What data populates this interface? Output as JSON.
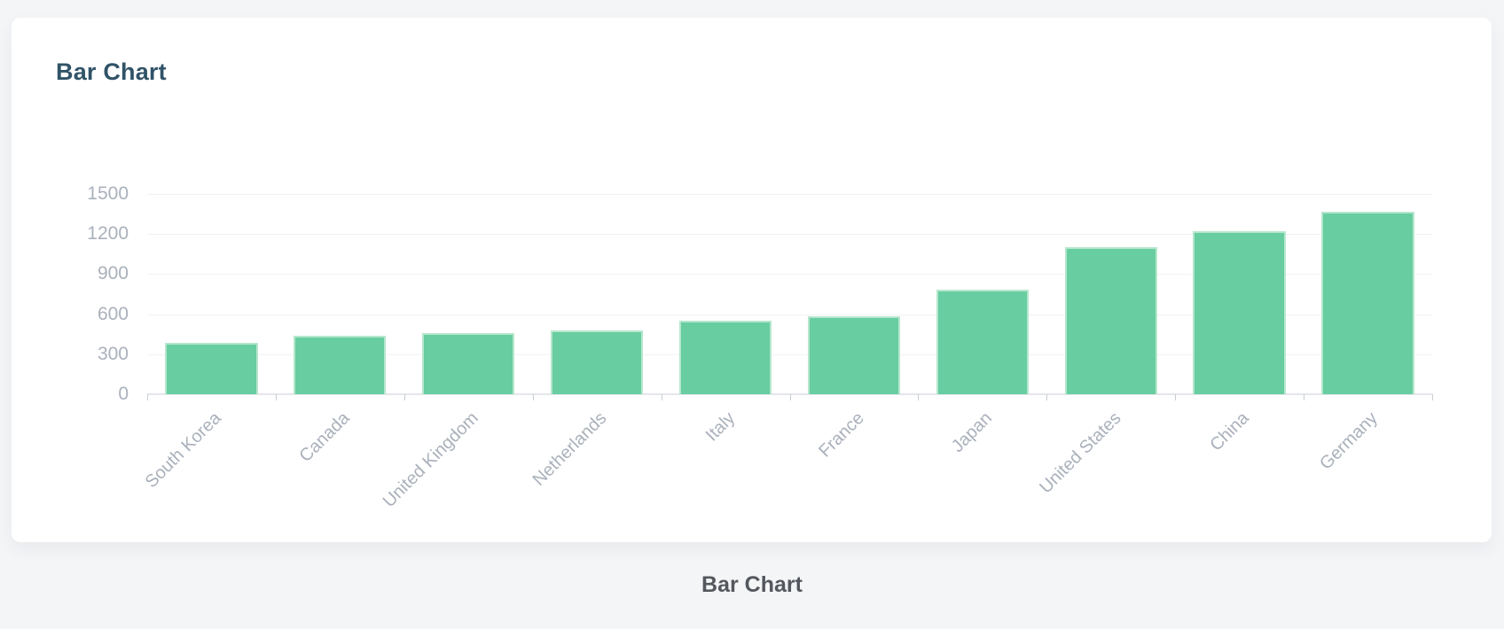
{
  "card": {
    "title": "Bar Chart"
  },
  "caption": "Bar Chart",
  "chart_data": {
    "type": "bar",
    "title": "Bar Chart",
    "categories": [
      "South Korea",
      "Canada",
      "United Kingdom",
      "Netherlands",
      "Italy",
      "France",
      "Japan",
      "United States",
      "China",
      "Germany"
    ],
    "values": [
      385,
      435,
      455,
      475,
      550,
      585,
      780,
      1100,
      1220,
      1365
    ],
    "xlabel": "",
    "ylabel": "",
    "ylim": [
      0,
      1500
    ],
    "yticks": [
      0,
      300,
      600,
      900,
      1200,
      1500
    ],
    "grid": true,
    "legend": false,
    "colors": {
      "bar_fill": "#68cda1",
      "bar_border": "#b5e7cd",
      "title": "#315368",
      "axis_labels": "#aab1bb",
      "gridline": "#f1f2f5",
      "axis_line": "#e4e6ea",
      "page_background": "#f4f5f7",
      "card_background": "#ffffff",
      "caption": "#54575d"
    }
  }
}
